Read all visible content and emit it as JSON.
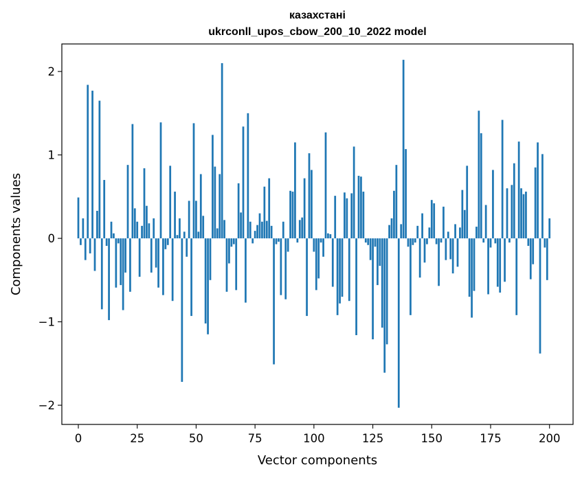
{
  "chart_data": {
    "type": "bar",
    "title_line1": "казахстані",
    "title_line2": "ukrconll_upos_cbow_200_10_2022 model",
    "xlabel": "Vector components",
    "ylabel": "Components values",
    "xlim": [
      -7,
      210
    ],
    "ylim": [
      -2.23,
      2.33
    ],
    "xticks": [
      0,
      25,
      50,
      75,
      100,
      125,
      150,
      175,
      200
    ],
    "yticks": [
      -2,
      -1,
      0,
      1,
      2
    ],
    "ytick_labels": [
      "−2",
      "−1",
      "0",
      "1",
      "2"
    ],
    "grid": false,
    "bar_color": "#1f77b4",
    "values": [
      0.49,
      -0.08,
      0.24,
      -0.26,
      1.84,
      -0.18,
      1.77,
      -0.39,
      0.33,
      1.65,
      -0.85,
      0.7,
      -0.09,
      -0.98,
      0.2,
      0.06,
      -0.59,
      -0.06,
      -0.56,
      -0.86,
      -0.41,
      0.88,
      -0.64,
      1.37,
      0.36,
      0.2,
      -0.46,
      0.15,
      0.84,
      0.39,
      0.18,
      -0.41,
      0.24,
      -0.35,
      -0.59,
      1.39,
      -0.68,
      -0.13,
      -0.08,
      0.87,
      -0.75,
      0.56,
      0.04,
      0.24,
      -1.72,
      0.08,
      -0.22,
      0.45,
      -0.93,
      1.38,
      0.45,
      0.08,
      0.77,
      0.27,
      -1.02,
      -1.15,
      -0.5,
      1.24,
      0.86,
      0.12,
      0.77,
      2.1,
      0.22,
      -0.64,
      -0.3,
      -0.1,
      -0.07,
      -0.62,
      0.66,
      0.31,
      1.34,
      -0.77,
      1.5,
      0.2,
      -0.06,
      0.09,
      0.16,
      0.3,
      0.2,
      0.62,
      0.21,
      0.72,
      0.15,
      -1.51,
      -0.07,
      -0.04,
      -0.68,
      0.2,
      -0.73,
      -0.16,
      0.57,
      0.56,
      1.15,
      -0.05,
      0.22,
      0.25,
      0.72,
      -0.93,
      1.02,
      0.82,
      -0.16,
      -0.62,
      -0.48,
      -0.05,
      -0.22,
      1.27,
      0.06,
      0.05,
      -0.58,
      0.51,
      -0.92,
      -0.78,
      -0.7,
      0.55,
      0.48,
      -0.75,
      0.54,
      1.1,
      -1.16,
      0.75,
      0.74,
      0.56,
      -0.05,
      -0.08,
      -0.26,
      -1.21,
      -0.1,
      -0.56,
      -0.33,
      -1.07,
      -1.61,
      -1.27,
      0.16,
      0.24,
      0.57,
      0.88,
      -2.03,
      0.17,
      2.14,
      1.07,
      -0.1,
      -0.92,
      -0.08,
      -0.05,
      0.15,
      -0.47,
      0.3,
      -0.29,
      -0.07,
      0.13,
      0.46,
      0.42,
      -0.07,
      -0.57,
      -0.05,
      0.38,
      -0.26,
      0.08,
      -0.25,
      -0.42,
      0.17,
      -0.34,
      0.13,
      0.58,
      0.34,
      0.87,
      -0.7,
      -0.95,
      -0.63,
      0.14,
      1.53,
      1.26,
      -0.05,
      0.4,
      -0.67,
      -0.11,
      0.82,
      -0.06,
      -0.58,
      -0.65,
      1.42,
      -0.52,
      0.6,
      -0.05,
      0.64,
      0.9,
      -0.92,
      1.16,
      0.6,
      0.53,
      0.56,
      -0.09,
      -0.49,
      -0.31,
      0.85,
      1.15,
      -1.38,
      1.01,
      -0.11,
      -0.5,
      0.24
    ]
  }
}
